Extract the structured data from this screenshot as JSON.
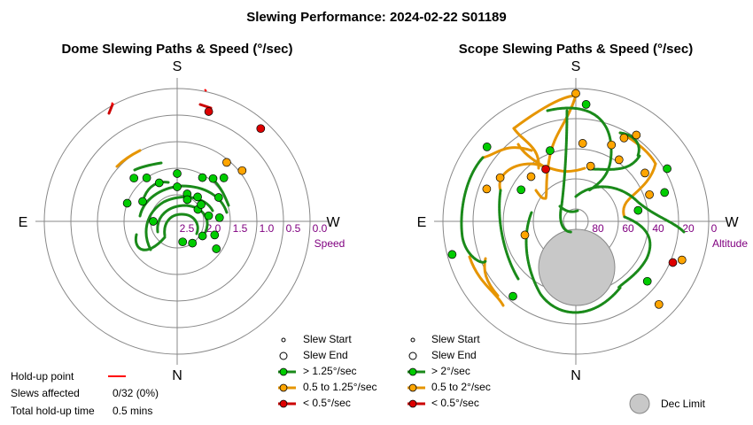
{
  "title": "Slewing Performance: 2024-02-22 S01189",
  "colors": {
    "fast": "#00cc00",
    "fast_line": "#1a8a1a",
    "medium": "#ffa500",
    "slow": "#dd0000",
    "holdup": "#ff0000",
    "dec_fill": "#c8c8c8",
    "dec_stroke": "#888888"
  },
  "dome": {
    "title": "Dome Slewing Paths & Speed (°/sec)",
    "dir_s": "S",
    "dir_n": "N",
    "dir_e": "E",
    "dir_w": "W",
    "ticks": [
      "2.5",
      "2.0",
      "1.5",
      "1.0",
      "0.5",
      "0.0"
    ],
    "axis_label": "Speed",
    "legend": {
      "start": "Slew Start",
      "end": "Slew End",
      "fast": "> 1.25°/sec",
      "medium": "0.5 to 1.25°/sec",
      "slow": "< 0.5°/sec"
    }
  },
  "scope": {
    "title": "Scope Slewing Paths & Speed (°/sec)",
    "dir_s": "S",
    "dir_n": "N",
    "dir_e": "E",
    "dir_w": "W",
    "ticks": [
      "80",
      "60",
      "40",
      "20",
      "0"
    ],
    "axis_label": "Altitude",
    "legend": {
      "start": "Slew Start",
      "end": "Slew End",
      "fast": "> 2°/sec",
      "medium": "0.5 to 2°/sec",
      "slow": "< 0.5°/sec"
    },
    "dec_limit_label": "Dec Limit"
  },
  "holdup": {
    "point_label": "Hold-up point",
    "slews_label": "Slews affected",
    "slews_value": "0/32 (0%)",
    "time_label": "Total hold-up time",
    "time_value": "0.5 mins"
  },
  "chart_data": [
    {
      "type": "scatter",
      "title": "Dome Slewing Paths & Speed (°/sec)",
      "projection": "polar",
      "radial_axis": "speed (°/sec), 0.0 at rim, 2.5 near centre",
      "radial_ticks": [
        2.5,
        2.0,
        1.5,
        1.0,
        0.5,
        0.0
      ],
      "angle_unit": "azimuth degrees (0 = N at bottom, 180 = S at top, 90 = E at left)",
      "points": [
        {
          "az": 138,
          "speed": 0.15,
          "class": "slow"
        },
        {
          "az": 164,
          "speed": 0.35,
          "class": "slow"
        },
        {
          "az": 140,
          "speed": 1.05,
          "class": "medium"
        },
        {
          "az": 128,
          "speed": 0.95,
          "class": "medium"
        },
        {
          "az": 140,
          "speed": 1.45,
          "class": "fast"
        },
        {
          "az": 150,
          "speed": 1.55,
          "class": "fast"
        },
        {
          "az": 133,
          "speed": 1.3,
          "class": "fast"
        },
        {
          "az": 120,
          "speed": 1.6,
          "class": "fast"
        },
        {
          "az": 140,
          "speed": 1.9,
          "class": "fast"
        },
        {
          "az": 160,
          "speed": 1.95,
          "class": "fast"
        },
        {
          "az": 180,
          "speed": 1.85,
          "class": "fast"
        },
        {
          "az": 205,
          "speed": 1.7,
          "class": "fast"
        },
        {
          "az": 215,
          "speed": 1.5,
          "class": "fast"
        },
        {
          "az": 225,
          "speed": 1.35,
          "class": "fast"
        },
        {
          "az": 240,
          "speed": 1.75,
          "class": "fast"
        },
        {
          "az": 250,
          "speed": 1.5,
          "class": "fast"
        },
        {
          "az": 100,
          "speed": 1.9,
          "class": "fast"
        },
        {
          "az": 95,
          "speed": 1.7,
          "class": "fast"
        },
        {
          "az": 70,
          "speed": 1.75,
          "class": "fast"
        },
        {
          "az": 55,
          "speed": 1.6,
          "class": "fast"
        },
        {
          "az": 60,
          "speed": 1.95,
          "class": "fast"
        },
        {
          "az": 35,
          "speed": 2.0,
          "class": "fast"
        },
        {
          "az": 15,
          "speed": 2.1,
          "class": "fast"
        },
        {
          "az": 120,
          "speed": 2.05,
          "class": "fast"
        },
        {
          "az": 155,
          "speed": 2.05,
          "class": "fast"
        },
        {
          "az": 125,
          "speed": 1.95,
          "class": "fast"
        },
        {
          "az": 270,
          "speed": 2.05,
          "class": "fast"
        },
        {
          "az": 180,
          "speed": 1.6,
          "class": "fast"
        }
      ]
    },
    {
      "type": "scatter",
      "title": "Scope Slewing Paths & Speed (°/sec)",
      "projection": "polar",
      "radial_axis": "altitude (°), 90 at centre, 0 at rim",
      "radial_ticks": [
        80,
        60,
        40,
        20,
        0
      ],
      "angle_unit": "azimuth degrees (0 = N at bottom, 180 = S at top, 90 = E at left)",
      "dec_limit": {
        "az": 0,
        "alt": 57,
        "radius_deg": 23
      },
      "points": [
        {
          "az": 210,
          "alt": 50,
          "class": "slow"
        },
        {
          "az": 67,
          "alt": 20,
          "class": "slow"
        },
        {
          "az": 180,
          "alt": 5,
          "class": "medium"
        },
        {
          "az": 145,
          "alt": 20,
          "class": "medium"
        },
        {
          "az": 150,
          "alt": 26,
          "class": "medium"
        },
        {
          "az": 155,
          "alt": 34,
          "class": "medium"
        },
        {
          "az": 145,
          "alt": 40,
          "class": "medium"
        },
        {
          "az": 125,
          "alt": 34,
          "class": "medium"
        },
        {
          "az": 110,
          "alt": 38,
          "class": "medium"
        },
        {
          "az": 240,
          "alt": 32,
          "class": "medium"
        },
        {
          "az": 250,
          "alt": 27,
          "class": "medium"
        },
        {
          "az": 70,
          "alt": 15,
          "class": "medium"
        },
        {
          "az": 45,
          "alt": 12,
          "class": "medium"
        },
        {
          "az": 285,
          "alt": 55,
          "class": "medium"
        },
        {
          "az": 175,
          "alt": 38,
          "class": "medium"
        },
        {
          "az": 165,
          "alt": 52,
          "class": "medium"
        },
        {
          "az": 225,
          "alt": 48,
          "class": "medium"
        },
        {
          "az": 175,
          "alt": 12,
          "class": "fast"
        },
        {
          "az": 230,
          "alt": 13,
          "class": "fast"
        },
        {
          "az": 120,
          "alt": 20,
          "class": "fast"
        },
        {
          "az": 108,
          "alt": 28,
          "class": "fast"
        },
        {
          "az": 200,
          "alt": 40,
          "class": "fast"
        },
        {
          "az": 240,
          "alt": 48,
          "class": "fast"
        },
        {
          "az": 285,
          "alt": 5,
          "class": "fast"
        },
        {
          "az": 320,
          "alt": 25,
          "class": "fast"
        },
        {
          "az": 50,
          "alt": 28,
          "class": "fast"
        },
        {
          "az": 100,
          "alt": 48,
          "class": "fast"
        }
      ]
    }
  ]
}
